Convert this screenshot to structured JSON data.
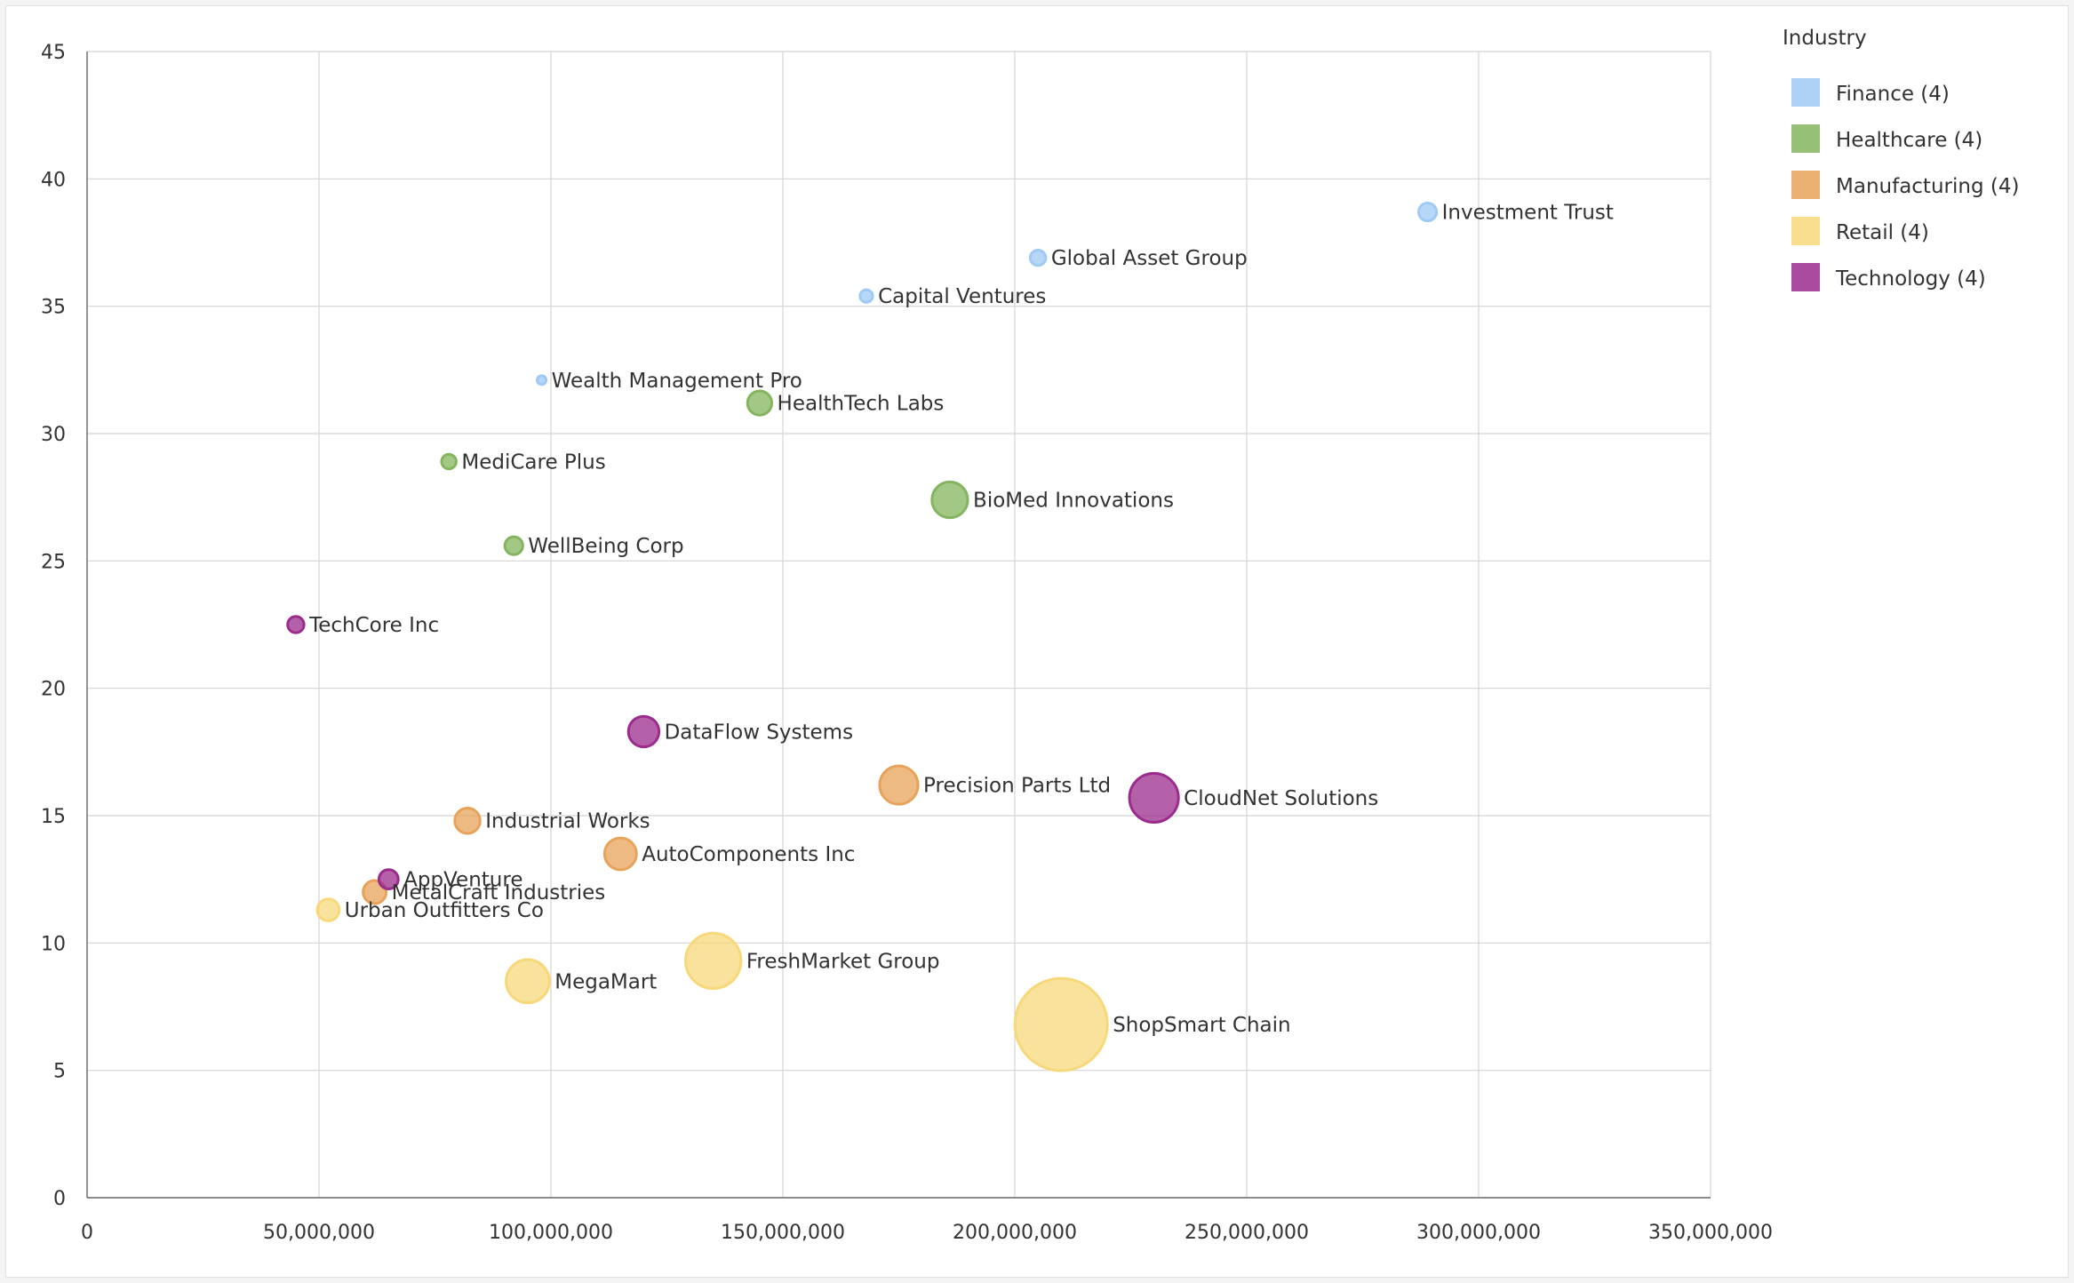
{
  "chart_data": {
    "type": "scatter",
    "subtype": "bubble",
    "title": "",
    "xlabel": "",
    "ylabel": "",
    "xlim": [
      0,
      350000000
    ],
    "ylim": [
      0,
      45
    ],
    "x_ticks": [
      0,
      50000000,
      100000000,
      150000000,
      200000000,
      250000000,
      300000000,
      350000000
    ],
    "x_tick_labels": [
      "0",
      "50,000,000",
      "100,000,000",
      "150,000,000",
      "200,000,000",
      "250,000,000",
      "300,000,000",
      "350,000,000"
    ],
    "y_ticks": [
      0,
      5,
      10,
      15,
      20,
      25,
      30,
      35,
      40,
      45
    ],
    "y_tick_labels": [
      "0",
      "5",
      "10",
      "15",
      "20",
      "25",
      "30",
      "35",
      "40",
      "45"
    ],
    "grid": true,
    "legend": {
      "title": "Industry",
      "position": "top-right",
      "entries": [
        {
          "name": "Finance",
          "label": "Finance (4)",
          "color": "#9fcaf5"
        },
        {
          "name": "Healthcare",
          "label": "Healthcare (4)",
          "color": "#84b55e"
        },
        {
          "name": "Manufacturing",
          "label": "Manufacturing (4)",
          "color": "#e8a35a"
        },
        {
          "name": "Retail",
          "label": "Retail (4)",
          "color": "#f7d87a"
        },
        {
          "name": "Technology",
          "label": "Technology (4)",
          "color": "#9b2c8e"
        }
      ]
    },
    "series": [
      {
        "name": "Finance",
        "color": "#9fcaf5",
        "points": [
          {
            "label": "Investment Trust",
            "x": 289000000,
            "y": 38.7,
            "size": 12
          },
          {
            "label": "Global Asset Group",
            "x": 205000000,
            "y": 36.9,
            "size": 9
          },
          {
            "label": "Capital Ventures",
            "x": 168000000,
            "y": 35.4,
            "size": 6
          },
          {
            "label": "Wealth Management Pro",
            "x": 98000000,
            "y": 32.1,
            "size": 3
          }
        ]
      },
      {
        "name": "Healthcare",
        "color": "#84b55e",
        "points": [
          {
            "label": "HealthTech Labs",
            "x": 145000000,
            "y": 31.2,
            "size": 22
          },
          {
            "label": "MediCare Plus",
            "x": 78000000,
            "y": 28.9,
            "size": 8
          },
          {
            "label": "BioMed Innovations",
            "x": 186000000,
            "y": 27.4,
            "size": 48
          },
          {
            "label": "WellBeing Corp",
            "x": 92000000,
            "y": 25.6,
            "size": 12
          }
        ]
      },
      {
        "name": "Manufacturing",
        "color": "#e8a35a",
        "points": [
          {
            "label": "Precision Parts Ltd",
            "x": 175000000,
            "y": 16.2,
            "size": 55
          },
          {
            "label": "Industrial Works",
            "x": 82000000,
            "y": 14.8,
            "size": 24
          },
          {
            "label": "AutoComponents Inc",
            "x": 115000000,
            "y": 13.5,
            "size": 38
          },
          {
            "label": "MetalCraft Industries",
            "x": 62000000,
            "y": 12.0,
            "size": 20
          }
        ]
      },
      {
        "name": "Retail",
        "color": "#f7d87a",
        "points": [
          {
            "label": "Urban Outfitters Co",
            "x": 52000000,
            "y": 11.3,
            "size": 18
          },
          {
            "label": "MegaMart",
            "x": 95000000,
            "y": 8.5,
            "size": 70
          },
          {
            "label": "FreshMarket Group",
            "x": 135000000,
            "y": 9.3,
            "size": 115
          },
          {
            "label": "ShopSmart Chain",
            "x": 210000000,
            "y": 6.8,
            "size": 320
          }
        ]
      },
      {
        "name": "Technology",
        "color": "#9b2c8e",
        "points": [
          {
            "label": "TechCore Inc",
            "x": 45000000,
            "y": 22.5,
            "size": 10
          },
          {
            "label": "DataFlow Systems",
            "x": 120000000,
            "y": 18.3,
            "size": 35
          },
          {
            "label": "CloudNet Solutions",
            "x": 230000000,
            "y": 15.7,
            "size": 90
          },
          {
            "label": "AppVenture",
            "x": 65000000,
            "y": 12.5,
            "size": 14
          }
        ]
      }
    ]
  }
}
